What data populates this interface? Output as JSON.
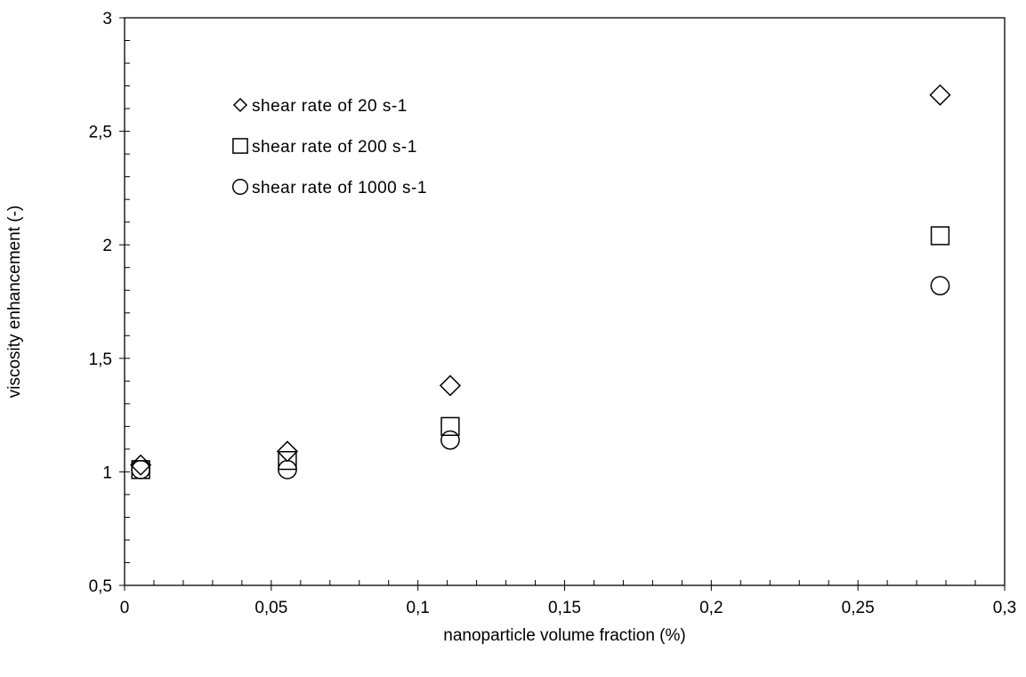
{
  "chart_data": {
    "type": "scatter",
    "xlabel": "nanoparticle volume fraction (%)",
    "ylabel": "viscosity enhancement  (-)",
    "xlim": [
      0,
      0.3
    ],
    "ylim": [
      0.5,
      3
    ],
    "x_ticks": [
      "0",
      "0,05",
      "0,1",
      "0,15",
      "0,2",
      "0,25",
      "0,3"
    ],
    "y_ticks": [
      "0,5",
      "1",
      "1,5",
      "2",
      "2,5",
      "3"
    ],
    "x_tick_values": [
      0,
      0.05,
      0.1,
      0.15,
      0.2,
      0.25,
      0.3
    ],
    "y_tick_values": [
      0.5,
      1,
      1.5,
      2,
      2.5,
      3
    ],
    "grid": false,
    "legend_position": "top-left",
    "series": [
      {
        "name": "shear rate of 20 s-1",
        "marker": "diamond",
        "x": [
          0.0055,
          0.0555,
          0.111,
          0.278
        ],
        "y": [
          1.03,
          1.09,
          1.38,
          2.66
        ]
      },
      {
        "name": "shear rate of 200 s-1",
        "marker": "square",
        "x": [
          0.0055,
          0.0555,
          0.111,
          0.278
        ],
        "y": [
          1.01,
          1.05,
          1.2,
          2.04
        ]
      },
      {
        "name": "shear rate of 1000 s-1",
        "marker": "circle",
        "x": [
          0.0055,
          0.0555,
          0.111,
          0.278
        ],
        "y": [
          1.01,
          1.01,
          1.14,
          1.82
        ]
      }
    ]
  }
}
